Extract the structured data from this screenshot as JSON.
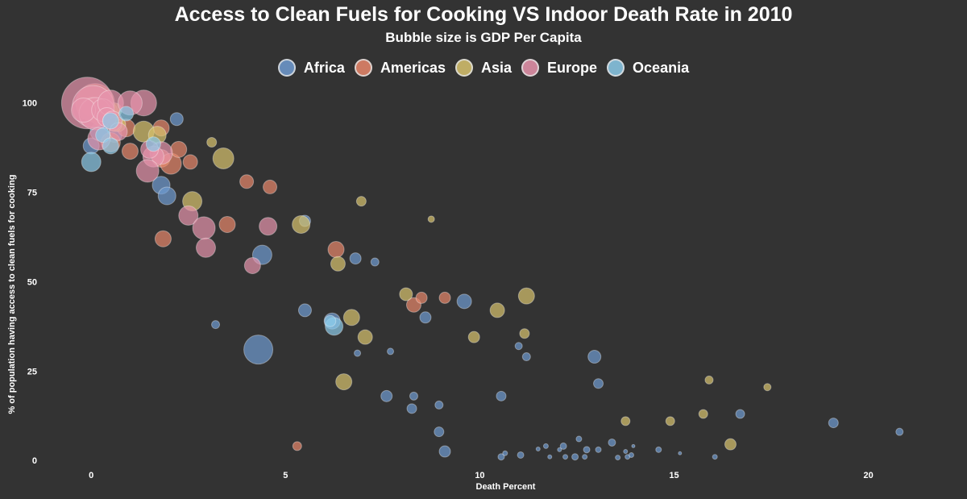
{
  "title": "Access to Clean Fuels for Cooking VS Indoor Death Rate in 2010",
  "subtitle": "Bubble size is GDP Per Capita",
  "legend": [
    {
      "name": "Africa",
      "color": "#6F9BD1"
    },
    {
      "name": "Americas",
      "color": "#E8876B"
    },
    {
      "name": "Asia",
      "color": "#D8C36E"
    },
    {
      "name": "Europe",
      "color": "#E794AC"
    },
    {
      "name": "Oceania",
      "color": "#8CCBEA"
    }
  ],
  "chart_data": {
    "type": "scatter",
    "title": "Access to Clean Fuels for Cooking VS Indoor Death Rate in 2010",
    "subtitle": "Bubble size is GDP Per Capita",
    "xlabel": "Death Percent",
    "ylabel": "% of population having access to clean fuels for cooking",
    "xlim": [
      -1.0,
      21.5
    ],
    "ylim": [
      -2,
      104
    ],
    "xticks": [
      0,
      5,
      10,
      15,
      20
    ],
    "yticks": [
      0,
      25,
      50,
      75,
      100
    ],
    "grid": false,
    "legend_position": "top",
    "series": [
      {
        "name": "Africa",
        "color": "#6F9BD1",
        "points": [
          [
            0.3,
            95,
            10
          ],
          [
            0.6,
            91,
            9
          ],
          [
            0.0,
            88,
            10
          ],
          [
            0.2,
            92,
            11
          ],
          [
            2.2,
            95.5,
            8
          ],
          [
            1.8,
            77,
            11
          ],
          [
            1.95,
            74,
            11
          ],
          [
            5.5,
            67,
            7
          ],
          [
            5.5,
            42,
            8
          ],
          [
            6.2,
            39,
            10
          ],
          [
            4.4,
            57.5,
            12
          ],
          [
            3.2,
            38,
            5
          ],
          [
            4.3,
            31,
            18
          ],
          [
            6.8,
            56.5,
            7
          ],
          [
            7.3,
            55.5,
            5
          ],
          [
            6.85,
            30,
            4
          ],
          [
            7.7,
            30.5,
            4
          ],
          [
            9.6,
            44.5,
            9
          ],
          [
            8.6,
            40,
            7
          ],
          [
            7.6,
            18,
            7
          ],
          [
            8.3,
            18,
            5
          ],
          [
            8.25,
            14.5,
            6
          ],
          [
            8.95,
            15.5,
            5
          ],
          [
            8.95,
            8,
            6
          ],
          [
            9.1,
            2.5,
            7
          ],
          [
            10.55,
            18,
            6
          ],
          [
            11.0,
            32,
            4.5
          ],
          [
            11.2,
            29,
            5
          ],
          [
            10.55,
            1,
            4
          ],
          [
            10.65,
            2,
            3
          ],
          [
            11.05,
            1.5,
            4
          ],
          [
            11.5,
            3.2,
            2.5
          ],
          [
            11.7,
            4,
            3
          ],
          [
            11.8,
            1,
            2.5
          ],
          [
            12.05,
            3,
            2.5
          ],
          [
            12.15,
            4,
            4
          ],
          [
            12.2,
            1,
            3
          ],
          [
            12.45,
            1,
            4
          ],
          [
            12.55,
            6,
            3.5
          ],
          [
            12.7,
            1,
            3
          ],
          [
            12.75,
            3,
            4
          ],
          [
            13.05,
            3,
            3.5
          ],
          [
            13.4,
            5,
            4.5
          ],
          [
            13.55,
            0.8,
            3
          ],
          [
            13.75,
            2.5,
            2.5
          ],
          [
            13.8,
            1,
            3
          ],
          [
            13.9,
            1.5,
            3
          ],
          [
            13.95,
            4,
            2
          ],
          [
            14.6,
            3,
            3.5
          ],
          [
            15.15,
            2,
            2
          ],
          [
            16.05,
            1,
            3
          ],
          [
            13.05,
            21.5,
            6
          ],
          [
            12.95,
            29,
            8
          ],
          [
            19.1,
            10.5,
            6
          ],
          [
            20.8,
            8,
            4.5
          ],
          [
            16.7,
            13,
            5.5
          ]
        ]
      },
      {
        "name": "Americas",
        "color": "#E8876B",
        "points": [
          [
            0.1,
            100,
            24
          ],
          [
            0.4,
            97,
            15
          ],
          [
            0.9,
            93,
            11
          ],
          [
            1.0,
            86.5,
            10
          ],
          [
            0.5,
            89,
            12
          ],
          [
            1.8,
            84.5,
            11
          ],
          [
            2.05,
            83,
            13
          ],
          [
            2.25,
            87,
            10
          ],
          [
            2.55,
            83.5,
            9
          ],
          [
            1.8,
            93,
            10
          ],
          [
            4.0,
            78,
            8.5
          ],
          [
            4.6,
            76.5,
            8.5
          ],
          [
            3.5,
            66,
            10
          ],
          [
            1.85,
            62,
            10
          ],
          [
            6.3,
            59,
            10
          ],
          [
            8.3,
            43.5,
            9
          ],
          [
            8.5,
            45.5,
            7
          ],
          [
            9.1,
            45.5,
            7
          ],
          [
            5.3,
            4,
            5.5
          ]
        ]
      },
      {
        "name": "Asia",
        "color": "#D8C36E",
        "points": [
          [
            0.0,
            99,
            12
          ],
          [
            0.2,
            96,
            10
          ],
          [
            0.6,
            98,
            9
          ],
          [
            0.7,
            94,
            9
          ],
          [
            1.35,
            92,
            13
          ],
          [
            1.7,
            91,
            11
          ],
          [
            3.1,
            89,
            6
          ],
          [
            3.4,
            84.5,
            13
          ],
          [
            2.6,
            72.5,
            12
          ],
          [
            6.95,
            72.5,
            6
          ],
          [
            8.75,
            67.5,
            4
          ],
          [
            5.4,
            66,
            11
          ],
          [
            6.35,
            55,
            9
          ],
          [
            6.7,
            40,
            10
          ],
          [
            7.05,
            34.5,
            9
          ],
          [
            8.1,
            46.5,
            8
          ],
          [
            10.45,
            42,
            9
          ],
          [
            11.2,
            46,
            10
          ],
          [
            11.15,
            35.5,
            6
          ],
          [
            9.85,
            34.5,
            7
          ],
          [
            6.5,
            22,
            10
          ],
          [
            13.75,
            11,
            5.5
          ],
          [
            14.9,
            11,
            5.5
          ],
          [
            15.75,
            13,
            5.5
          ],
          [
            15.9,
            22.5,
            5
          ],
          [
            16.45,
            4.5,
            7
          ],
          [
            17.4,
            20.5,
            4.5
          ],
          [
            0.6,
            94,
            9
          ]
        ]
      },
      {
        "name": "Europe",
        "color": "#E794AC",
        "points": [
          [
            -0.1,
            100,
            32
          ],
          [
            0.05,
            99,
            26
          ],
          [
            0.1,
            97,
            20
          ],
          [
            -0.2,
            98,
            15
          ],
          [
            0.3,
            98,
            14
          ],
          [
            0.5,
            100,
            16
          ],
          [
            1.35,
            100,
            16
          ],
          [
            1.0,
            100,
            15
          ],
          [
            0.4,
            96,
            12
          ],
          [
            0.2,
            90,
            14
          ],
          [
            0.55,
            95,
            12
          ],
          [
            1.8,
            86,
            14
          ],
          [
            1.6,
            85,
            13
          ],
          [
            1.5,
            87,
            11
          ],
          [
            1.45,
            81,
            14
          ],
          [
            2.5,
            68.5,
            12
          ],
          [
            2.9,
            65,
            14
          ],
          [
            2.95,
            59.5,
            12
          ],
          [
            4.55,
            65.5,
            11
          ],
          [
            4.15,
            54.5,
            10
          ],
          [
            0.7,
            92,
            11
          ]
        ]
      },
      {
        "name": "Oceania",
        "color": "#8CCBEA",
        "points": [
          [
            0.0,
            83.5,
            12
          ],
          [
            0.5,
            95,
            10
          ],
          [
            0.3,
            91,
            9
          ],
          [
            0.9,
            97,
            9
          ],
          [
            1.6,
            88.5,
            9
          ],
          [
            6.25,
            37.5,
            11
          ],
          [
            6.15,
            39,
            7
          ],
          [
            0.5,
            88,
            10
          ]
        ]
      }
    ]
  }
}
